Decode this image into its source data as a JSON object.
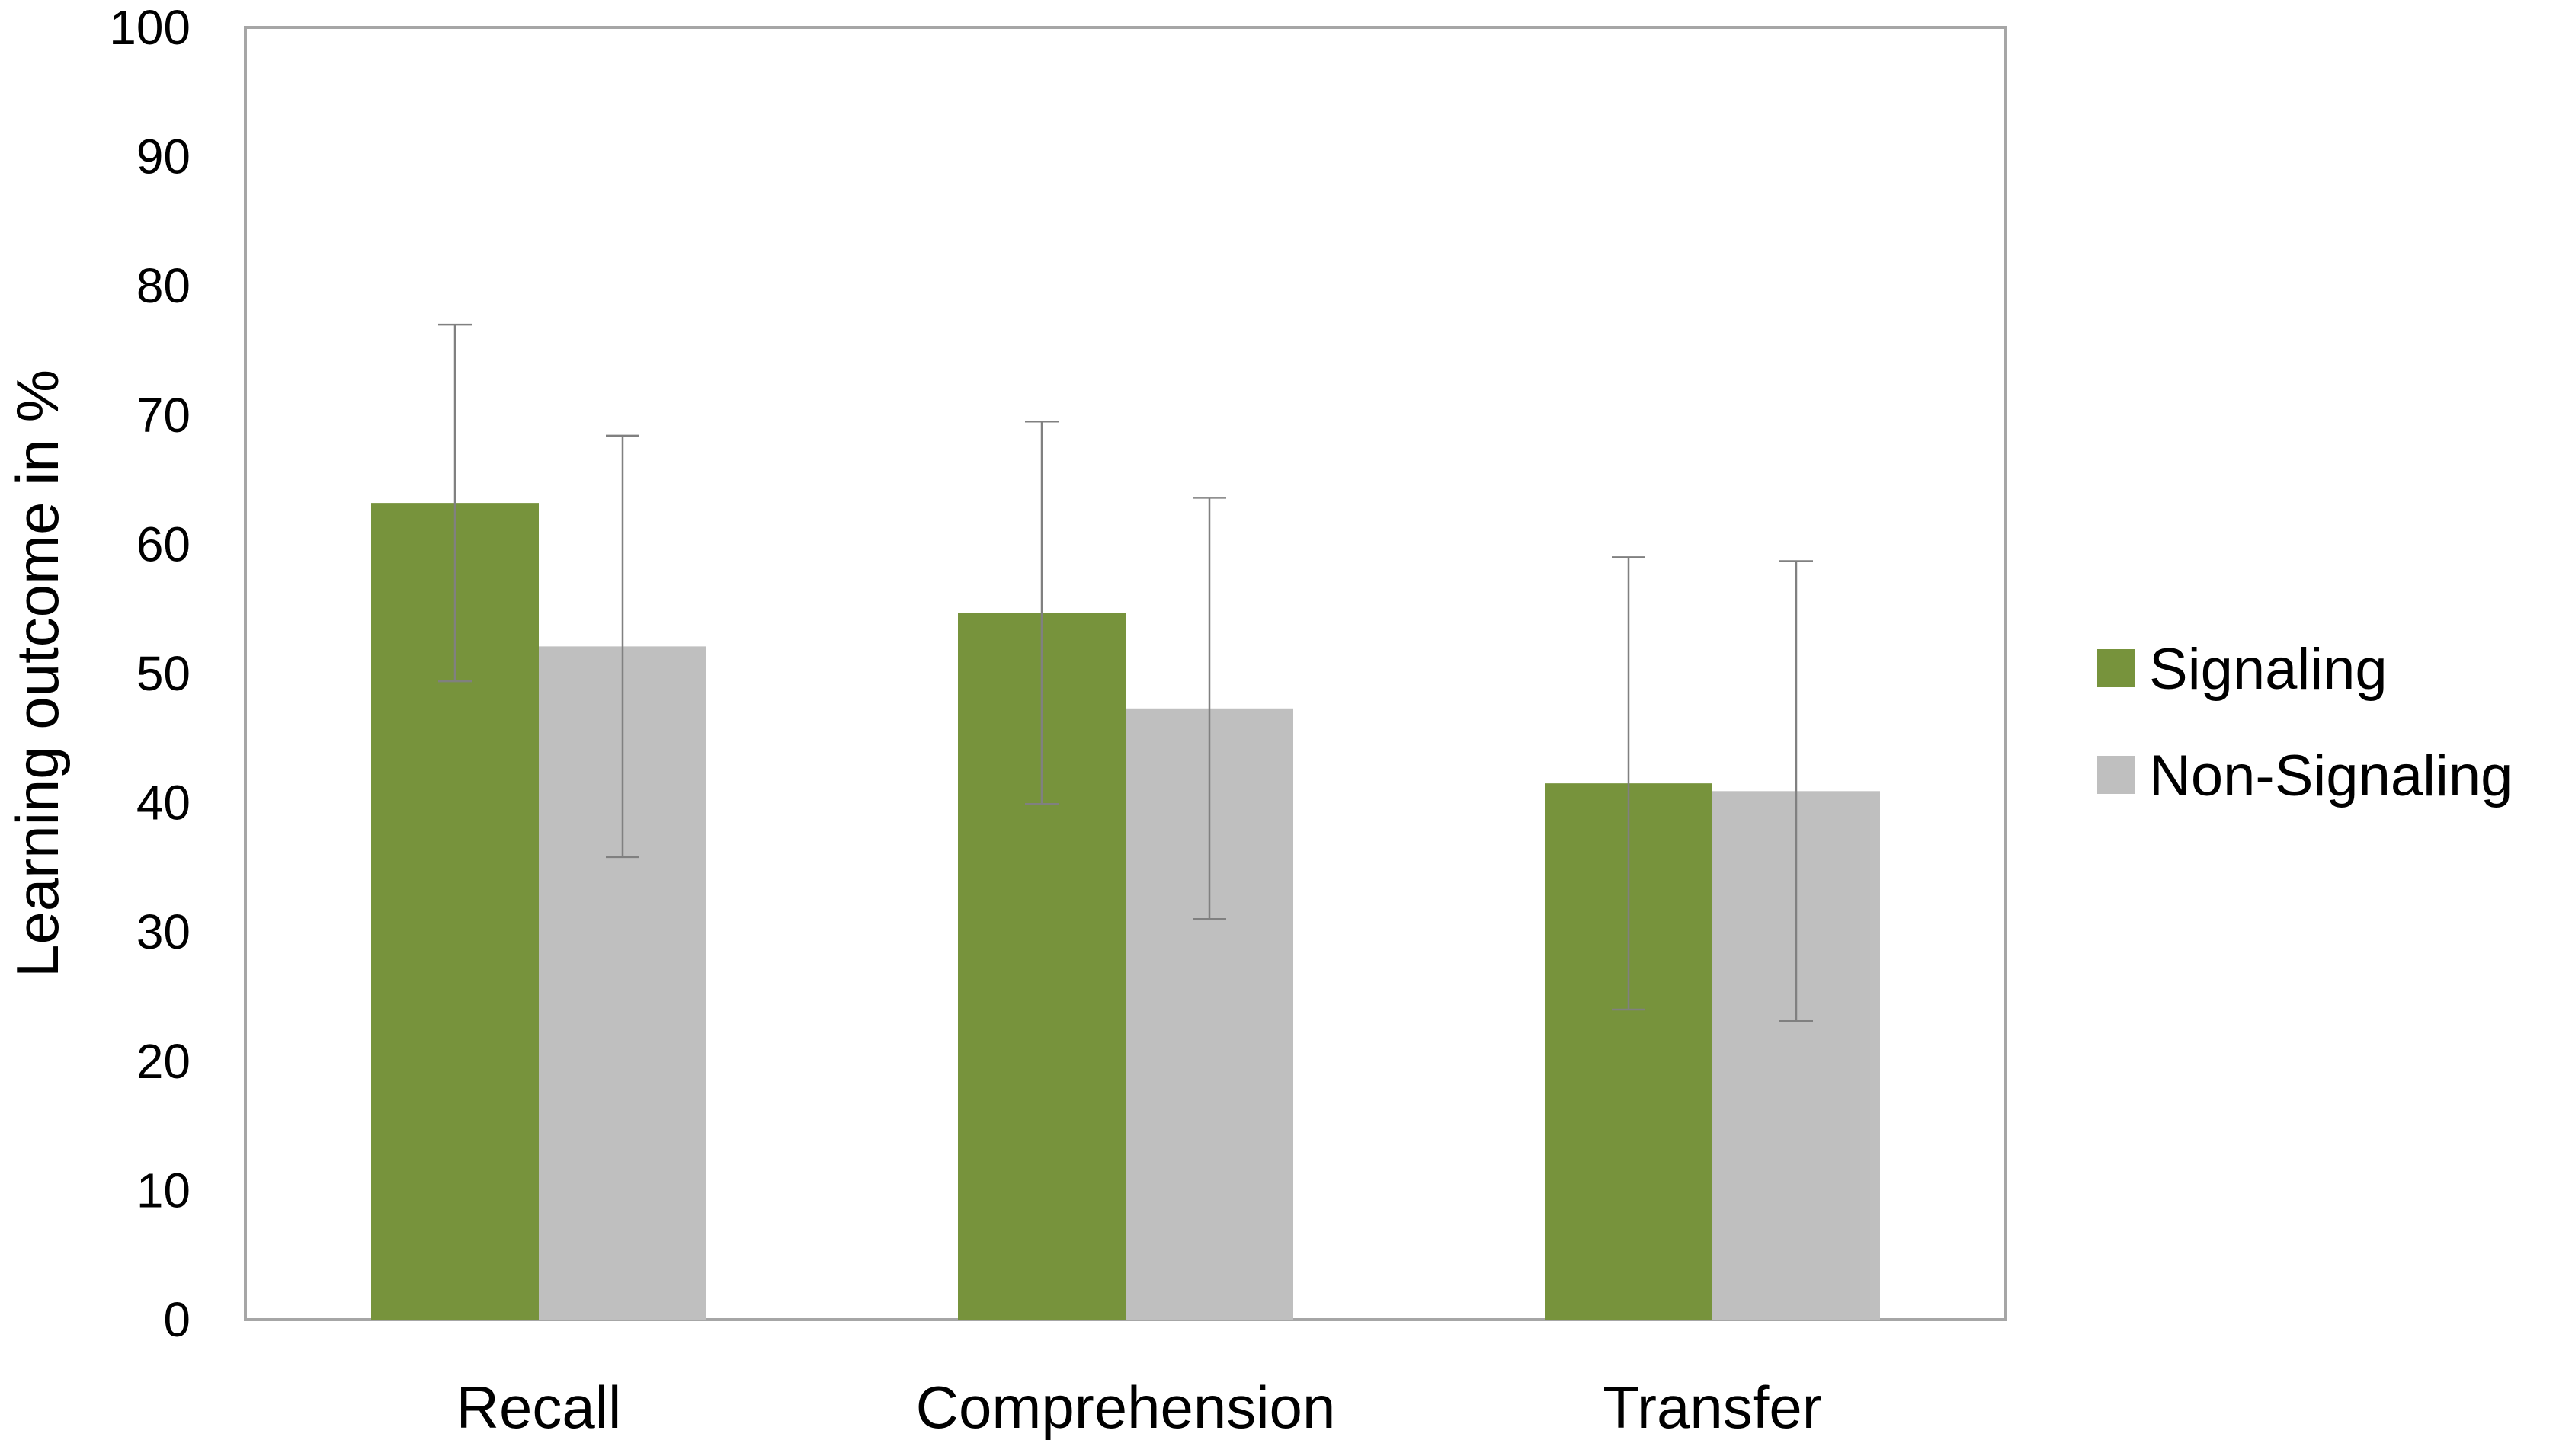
{
  "chart_data": {
    "type": "bar",
    "title": "",
    "xlabel": "",
    "ylabel": "Learning outcome in %",
    "categories": [
      "Recall",
      "Comprehension",
      "Transfer"
    ],
    "series": [
      {
        "name": "Signaling",
        "color": "#77933c",
        "values": [
          63.2,
          54.7,
          41.5
        ],
        "error": [
          13.8,
          14.8,
          17.5
        ]
      },
      {
        "name": "Non-Signaling",
        "color": "#bfbfbf",
        "values": [
          52.1,
          47.3,
          40.9
        ],
        "error": [
          16.3,
          16.3,
          17.8
        ]
      }
    ],
    "ylim": [
      0,
      100
    ],
    "yticks": [
      0,
      10,
      20,
      30,
      40,
      50,
      60,
      70,
      80,
      90,
      100
    ],
    "grid": false,
    "legend_position": "right",
    "plot_border_color": "#a6a6a6",
    "error_bar_color": "#808080"
  }
}
